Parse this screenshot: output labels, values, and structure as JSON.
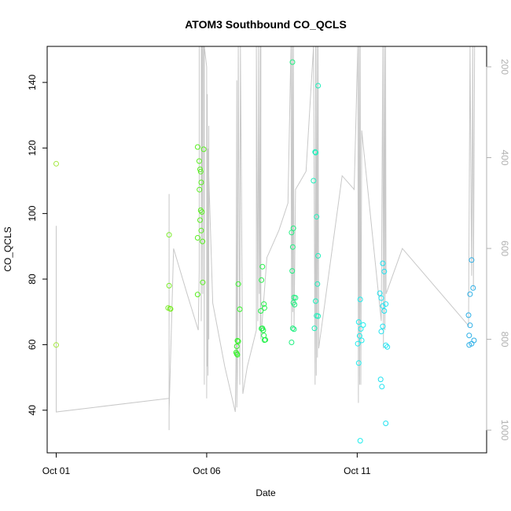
{
  "chart_data": {
    "type": "scatter",
    "title": "ATOM3 Southbound CO_QCLS",
    "xlabel": "Date",
    "ylabel": "CO_QCLS",
    "xlim": [
      -0.3,
      14.3
    ],
    "ylim": [
      27,
      151
    ],
    "y2lim": [
      1050,
      155
    ],
    "y2_reversed": true,
    "grid": false,
    "legend": "none",
    "x_ticks": [
      {
        "value": 0,
        "label": "Oct 01"
      },
      {
        "value": 5,
        "label": "Oct 06"
      },
      {
        "value": 10,
        "label": "Oct 11"
      }
    ],
    "y_ticks": [
      40,
      60,
      80,
      100,
      120,
      140
    ],
    "y2_ticks": [
      200,
      400,
      600,
      800,
      1000
    ],
    "altitude_profile": [
      [
        0,
        960
      ],
      [
        0,
        550
      ],
      [
        0,
        960
      ],
      [
        3.75,
        930
      ],
      [
        3.75,
        480
      ],
      [
        3.75,
        1000
      ],
      [
        3.75,
        550
      ],
      [
        3.75,
        930
      ],
      [
        3.75,
        600
      ],
      [
        3.75,
        1000
      ],
      [
        3.75,
        500
      ],
      [
        3.75,
        900
      ],
      [
        3.75,
        620
      ],
      [
        3.75,
        960
      ],
      [
        3.9,
        600
      ],
      [
        4.35,
        700
      ],
      [
        4.72,
        780
      ],
      [
        4.75,
        650
      ],
      [
        4.75,
        155
      ],
      [
        4.82,
        155
      ],
      [
        4.82,
        760
      ],
      [
        4.84,
        155
      ],
      [
        4.87,
        700
      ],
      [
        4.87,
        155
      ],
      [
        4.9,
        155
      ],
      [
        4.92,
        900
      ],
      [
        4.92,
        155
      ],
      [
        5,
        200
      ],
      [
        5,
        930
      ],
      [
        5.02,
        260
      ],
      [
        5.02,
        860
      ],
      [
        5.04,
        380
      ],
      [
        5.04,
        880
      ],
      [
        5.07,
        330
      ],
      [
        5.07,
        800
      ],
      [
        5.07,
        440
      ],
      [
        5.2,
        720
      ],
      [
        5.6,
        860
      ],
      [
        5.95,
        960
      ],
      [
        5.97,
        850
      ],
      [
        6,
        230
      ],
      [
        6,
        950
      ],
      [
        6.02,
        870
      ],
      [
        6.05,
        155
      ],
      [
        6.1,
        900
      ],
      [
        6.12,
        155
      ],
      [
        6.2,
        920
      ],
      [
        6.35,
        860
      ],
      [
        6.65,
        780
      ],
      [
        6.65,
        155
      ],
      [
        6.7,
        760
      ],
      [
        6.72,
        155
      ],
      [
        6.75,
        700
      ],
      [
        6.78,
        155
      ],
      [
        6.78,
        780
      ],
      [
        6.8,
        155
      ],
      [
        6.8,
        800
      ],
      [
        7.0,
        620
      ],
      [
        7.4,
        560
      ],
      [
        7.7,
        500
      ],
      [
        7.8,
        155
      ],
      [
        7.82,
        780
      ],
      [
        7.84,
        155
      ],
      [
        7.86,
        740
      ],
      [
        7.88,
        155
      ],
      [
        7.9,
        780
      ],
      [
        7.95,
        470
      ],
      [
        8.3,
        430
      ],
      [
        8.55,
        155
      ],
      [
        8.6,
        900
      ],
      [
        8.62,
        155
      ],
      [
        8.64,
        880
      ],
      [
        8.66,
        155
      ],
      [
        8.68,
        840
      ],
      [
        8.7,
        155
      ],
      [
        8.72,
        820
      ],
      [
        9.5,
        440
      ],
      [
        9.9,
        470
      ],
      [
        10.02,
        155
      ],
      [
        10.04,
        940
      ],
      [
        10.06,
        155
      ],
      [
        10.08,
        900
      ],
      [
        10.1,
        155
      ],
      [
        10.12,
        900
      ],
      [
        10.15,
        340
      ],
      [
        10.8,
        760
      ],
      [
        10.85,
        155
      ],
      [
        10.87,
        820
      ],
      [
        10.9,
        155
      ],
      [
        10.92,
        780
      ],
      [
        10.94,
        155
      ],
      [
        10.96,
        700
      ],
      [
        11.5,
        600
      ],
      [
        13.7,
        770
      ],
      [
        13.75,
        155
      ],
      [
        13.8,
        660
      ],
      [
        13.84,
        155
      ],
      [
        13.86,
        690
      ],
      [
        13.9,
        155
      ]
    ],
    "series": [
      {
        "points": [
          [
            0.0,
            115.2
          ],
          [
            0.0,
            59.9
          ]
        ]
      },
      {
        "points": [
          [
            3.75,
            93.5
          ],
          [
            3.75,
            78.0
          ],
          [
            3.78,
            71.0
          ],
          [
            3.8,
            70.9
          ],
          [
            3.72,
            71.2
          ]
        ]
      },
      {
        "points": [
          [
            4.7,
            120.3
          ],
          [
            4.75,
            116.0
          ],
          [
            4.78,
            113.5
          ],
          [
            4.8,
            112.8
          ],
          [
            4.82,
            109.5
          ],
          [
            4.76,
            107.3
          ],
          [
            4.8,
            101.0
          ],
          [
            4.84,
            100.5
          ],
          [
            4.78,
            98.0
          ],
          [
            4.7,
            92.6
          ],
          [
            4.82,
            94.8
          ],
          [
            4.86,
            91.5
          ],
          [
            4.9,
            119.6
          ],
          [
            4.87,
            79.0
          ],
          [
            4.7,
            75.3
          ]
        ]
      },
      {
        "points": [
          [
            6.05,
            78.5
          ],
          [
            6.1,
            70.8
          ],
          [
            6.02,
            61.2
          ],
          [
            6.05,
            61.0
          ],
          [
            6.0,
            59.5
          ],
          [
            5.98,
            57.6
          ],
          [
            6.0,
            57.2
          ],
          [
            6.02,
            56.9
          ]
        ]
      },
      {
        "points": [
          [
            6.85,
            83.8
          ],
          [
            6.82,
            79.7
          ],
          [
            6.9,
            72.4
          ],
          [
            6.92,
            71.2
          ],
          [
            6.8,
            70.3
          ],
          [
            6.85,
            65.0
          ],
          [
            6.88,
            64.4
          ],
          [
            6.82,
            64.9
          ],
          [
            6.9,
            62.8
          ],
          [
            6.92,
            61.4
          ],
          [
            6.95,
            61.5
          ]
        ]
      },
      {
        "points": [
          [
            7.85,
            146.2
          ],
          [
            7.88,
            95.5
          ],
          [
            7.82,
            94.2
          ],
          [
            7.86,
            89.8
          ],
          [
            7.84,
            82.5
          ],
          [
            7.9,
            74.4
          ],
          [
            7.95,
            74.3
          ],
          [
            7.88,
            72.8
          ],
          [
            7.92,
            72.2
          ],
          [
            7.86,
            65.0
          ],
          [
            7.9,
            64.7
          ],
          [
            7.82,
            60.7
          ]
        ]
      },
      {
        "points": [
          [
            8.7,
            139.0
          ],
          [
            8.6,
            118.8
          ],
          [
            8.62,
            118.6
          ],
          [
            8.55,
            110.0
          ],
          [
            8.65,
            99.0
          ],
          [
            8.7,
            87.1
          ],
          [
            8.68,
            78.5
          ],
          [
            8.62,
            73.3
          ],
          [
            8.65,
            68.8
          ],
          [
            8.7,
            68.7
          ],
          [
            8.58,
            65.0
          ]
        ]
      },
      {
        "points": [
          [
            10.1,
            73.8
          ],
          [
            10.05,
            66.9
          ],
          [
            10.2,
            66.0
          ],
          [
            10.12,
            64.8
          ],
          [
            10.08,
            62.7
          ],
          [
            10.15,
            61.3
          ],
          [
            10.02,
            60.3
          ],
          [
            10.05,
            54.4
          ],
          [
            10.1,
            30.7
          ]
        ]
      },
      {
        "points": [
          [
            10.85,
            84.8
          ],
          [
            10.9,
            82.3
          ],
          [
            10.75,
            75.7
          ],
          [
            10.8,
            74.2
          ],
          [
            10.95,
            72.4
          ],
          [
            10.85,
            71.8
          ],
          [
            10.9,
            70.3
          ],
          [
            10.85,
            65.6
          ],
          [
            10.8,
            64.0
          ],
          [
            10.95,
            59.8
          ],
          [
            11.0,
            59.3
          ],
          [
            10.78,
            49.4
          ],
          [
            10.82,
            47.2
          ],
          [
            10.95,
            36.0
          ]
        ]
      },
      {
        "points": [
          [
            13.8,
            85.8
          ],
          [
            13.85,
            77.3
          ],
          [
            13.75,
            75.4
          ],
          [
            13.7,
            69.0
          ],
          [
            13.75,
            65.9
          ],
          [
            13.72,
            62.8
          ],
          [
            13.8,
            60.3
          ],
          [
            13.88,
            61.3
          ],
          [
            13.72,
            59.9
          ]
        ]
      }
    ],
    "colors": {
      "altitude_line": "#c8c8c8",
      "axis": "#000000",
      "right_axis": "#b0b0b0",
      "point_colors": [
        "#a2e83c",
        "#7cec2c",
        "#5aef22",
        "#36f22a",
        "#22f048",
        "#20f080",
        "#20efbb",
        "#20eded",
        "#20e2f0",
        "#2aaee6"
      ]
    }
  }
}
